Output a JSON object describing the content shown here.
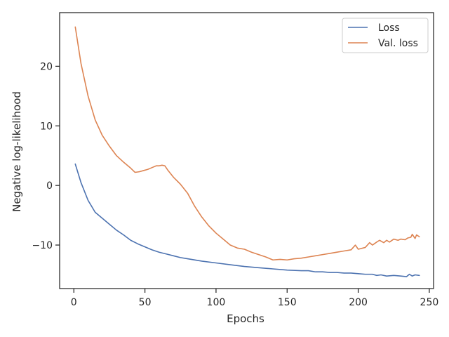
{
  "chart_data": {
    "type": "line",
    "xlabel": "Epochs",
    "ylabel": "Negative log-likelihood",
    "xlim": [
      -10,
      253
    ],
    "ylim": [
      -17.3,
      29.0
    ],
    "xticks": [
      0,
      50,
      100,
      150,
      200,
      250
    ],
    "yticks": [
      -10,
      0,
      10,
      20
    ],
    "ytick_labels": [
      "−10",
      "0",
      "10",
      "20"
    ],
    "grid": false,
    "legend": {
      "position": "top-right",
      "entries": [
        "Loss",
        "Val. loss"
      ]
    },
    "series": [
      {
        "name": "Loss",
        "color": "#4c72b0",
        "x": [
          1,
          5,
          10,
          15,
          20,
          25,
          30,
          35,
          40,
          45,
          50,
          55,
          60,
          65,
          70,
          75,
          80,
          90,
          100,
          110,
          120,
          130,
          140,
          150,
          160,
          165,
          170,
          175,
          180,
          185,
          190,
          195,
          200,
          205,
          210,
          213,
          216,
          220,
          225,
          230,
          234,
          236,
          238,
          240,
          243
        ],
        "y": [
          3.6,
          0.5,
          -2.5,
          -4.5,
          -5.5,
          -6.5,
          -7.5,
          -8.3,
          -9.2,
          -9.8,
          -10.3,
          -10.8,
          -11.2,
          -11.5,
          -11.8,
          -12.1,
          -12.3,
          -12.7,
          -13.0,
          -13.3,
          -13.6,
          -13.8,
          -14.0,
          -14.2,
          -14.3,
          -14.3,
          -14.5,
          -14.5,
          -14.6,
          -14.6,
          -14.7,
          -14.7,
          -14.8,
          -14.9,
          -14.9,
          -15.1,
          -15.0,
          -15.2,
          -15.1,
          -15.2,
          -15.3,
          -14.9,
          -15.2,
          -15.0,
          -15.1
        ]
      },
      {
        "name": "Val. loss",
        "color": "#dd8452",
        "x": [
          1,
          5,
          10,
          15,
          20,
          25,
          30,
          35,
          40,
          43,
          46,
          49,
          52,
          55,
          58,
          60,
          62,
          64,
          66,
          70,
          75,
          80,
          85,
          90,
          95,
          100,
          105,
          110,
          115,
          120,
          125,
          130,
          135,
          140,
          145,
          150,
          155,
          160,
          165,
          170,
          175,
          180,
          185,
          190,
          195,
          198,
          200,
          205,
          208,
          210,
          213,
          215,
          218,
          220,
          222,
          225,
          228,
          230,
          233,
          235,
          237,
          238,
          240,
          241,
          243
        ],
        "y": [
          26.6,
          20.5,
          15.0,
          11.0,
          8.4,
          6.6,
          5.0,
          3.9,
          2.9,
          2.2,
          2.3,
          2.5,
          2.7,
          3.0,
          3.3,
          3.3,
          3.4,
          3.3,
          2.6,
          1.4,
          0.2,
          -1.3,
          -3.5,
          -5.3,
          -6.8,
          -8.0,
          -9.0,
          -10.0,
          -10.5,
          -10.7,
          -11.2,
          -11.6,
          -12.0,
          -12.5,
          -12.4,
          -12.5,
          -12.3,
          -12.2,
          -12.0,
          -11.8,
          -11.6,
          -11.4,
          -11.2,
          -11.0,
          -10.8,
          -10.0,
          -10.7,
          -10.4,
          -9.6,
          -10.0,
          -9.5,
          -9.2,
          -9.6,
          -9.2,
          -9.5,
          -9.0,
          -9.2,
          -9.0,
          -9.1,
          -8.8,
          -8.7,
          -8.2,
          -8.9,
          -8.3,
          -8.6
        ]
      }
    ]
  }
}
